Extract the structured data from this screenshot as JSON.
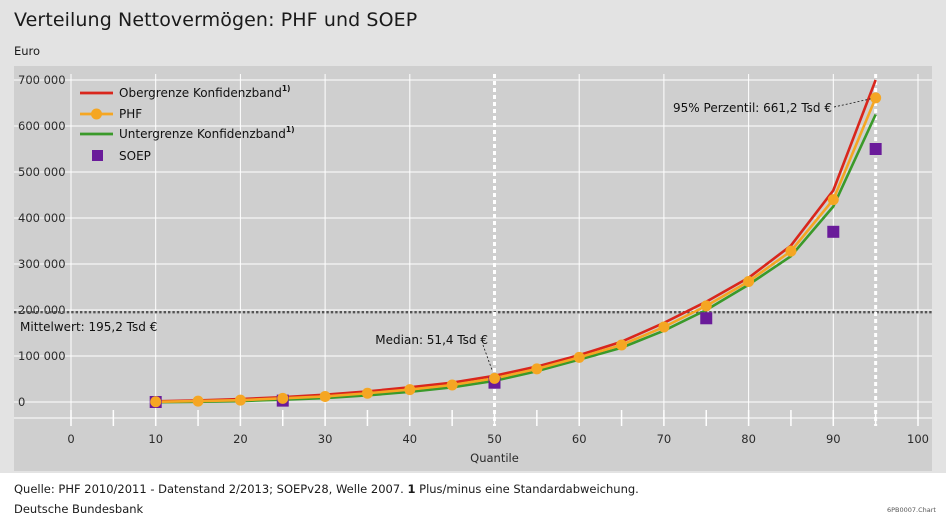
{
  "title": "Verteilung Nettovermögen: PHF und SOEP",
  "unit": "Euro",
  "footer": {
    "source_prefix": "Quelle: PHF 2010/2011 - Datenstand 2/2013; SOEPv28, Welle 2007. ",
    "source_bold": "1",
    "source_suffix": " Plus/minus eine Standardabweichung.",
    "org": "Deutsche Bundesbank",
    "code": "6PB0007.Chart"
  },
  "chart_data": {
    "type": "line",
    "xlabel": "Quantile",
    "xlim": [
      0,
      100
    ],
    "ylim": [
      -60000,
      720000
    ],
    "x_ticks": [
      0,
      10,
      20,
      30,
      40,
      50,
      60,
      70,
      80,
      90,
      100
    ],
    "y_ticks": [
      0,
      100000,
      200000,
      300000,
      400000,
      500000,
      600000,
      700000
    ],
    "x_tick_labels": [
      "0",
      "10",
      "20",
      "30",
      "40",
      "50",
      "60",
      "70",
      "80",
      "90",
      "100"
    ],
    "y_tick_labels": [
      "0",
      "100 000",
      "200 000",
      "300 000",
      "400 000",
      "500 000",
      "600 000",
      "700 000"
    ],
    "x": [
      10,
      15,
      20,
      25,
      30,
      35,
      40,
      45,
      50,
      55,
      60,
      65,
      70,
      75,
      80,
      85,
      90,
      95
    ],
    "series": [
      {
        "name": "Obergrenze Konfidenzband",
        "sup": "1)",
        "color": "#d9261c",
        "kind": "line",
        "values": [
          1500,
          3500,
          6500,
          10500,
          16000,
          23000,
          32000,
          42000,
          57000,
          77000,
          102000,
          131000,
          172000,
          218000,
          270000,
          340000,
          460000,
          700000
        ]
      },
      {
        "name": "PHF",
        "sup": "",
        "color": "#f5a623",
        "kind": "line-marker",
        "values": [
          500,
          2000,
          4000,
          8000,
          12000,
          19000,
          27000,
          37000,
          51400,
          72000,
          97000,
          124000,
          163000,
          209000,
          262000,
          328000,
          440000,
          661200
        ]
      },
      {
        "name": "Untergrenze Konfidenzband",
        "sup": "1)",
        "color": "#3a9a2a",
        "kind": "line",
        "values": [
          -500,
          500,
          2000,
          5000,
          8500,
          14500,
          22000,
          32000,
          46000,
          67000,
          92000,
          118000,
          155000,
          200000,
          255000,
          317000,
          425000,
          625000
        ]
      },
      {
        "name": "SOEP",
        "sup": "",
        "color": "#6a1b9a",
        "kind": "marker",
        "x": [
          10,
          25,
          50,
          75,
          90,
          95
        ],
        "values": [
          0,
          3000,
          42000,
          182000,
          370000,
          550000
        ]
      }
    ],
    "reference_lines": {
      "mean_y": 195200,
      "mean_label": "Mittelwert: 195,2 Tsd €",
      "median_x": 50,
      "p95_x": 95
    },
    "annotations": {
      "median": "Median: 51,4 Tsd €",
      "p95": "95% Perzentil: 661,2 Tsd €"
    },
    "legend_position": "top-left",
    "grid": true
  }
}
